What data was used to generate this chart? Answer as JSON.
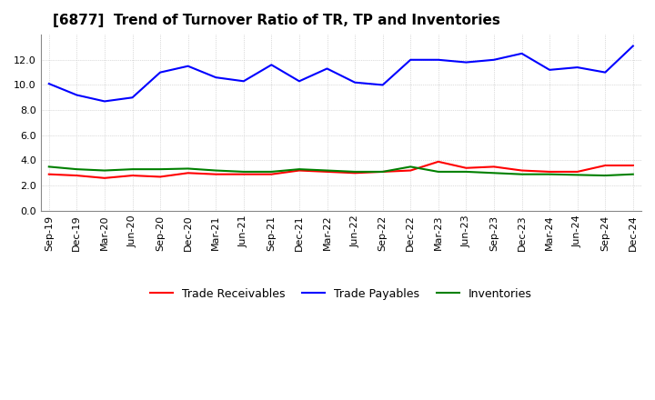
{
  "title": "[6877]  Trend of Turnover Ratio of TR, TP and Inventories",
  "x_labels": [
    "Sep-19",
    "Dec-19",
    "Mar-20",
    "Jun-20",
    "Sep-20",
    "Dec-20",
    "Mar-21",
    "Jun-21",
    "Sep-21",
    "Dec-21",
    "Mar-22",
    "Jun-22",
    "Sep-22",
    "Dec-22",
    "Mar-23",
    "Jun-23",
    "Sep-23",
    "Dec-23",
    "Mar-24",
    "Jun-24",
    "Sep-24",
    "Dec-24"
  ],
  "trade_receivables": [
    2.9,
    2.8,
    2.6,
    2.8,
    2.7,
    3.0,
    2.9,
    2.9,
    2.9,
    3.2,
    3.1,
    3.0,
    3.1,
    3.2,
    3.9,
    3.4,
    3.5,
    3.2,
    3.1,
    3.1,
    3.6,
    3.6
  ],
  "trade_payables": [
    10.1,
    9.2,
    8.7,
    9.0,
    11.0,
    11.5,
    10.6,
    10.3,
    11.6,
    10.3,
    11.3,
    10.2,
    10.0,
    12.0,
    12.0,
    11.8,
    12.0,
    12.5,
    11.2,
    11.4,
    11.0,
    13.1
  ],
  "inventories": [
    3.5,
    3.3,
    3.2,
    3.3,
    3.3,
    3.35,
    3.2,
    3.1,
    3.1,
    3.3,
    3.2,
    3.1,
    3.1,
    3.5,
    3.1,
    3.1,
    3.0,
    2.9,
    2.9,
    2.85,
    2.8,
    2.9
  ],
  "trade_receivables_color": "#ff0000",
  "trade_payables_color": "#0000ff",
  "inventories_color": "#008000",
  "ylim": [
    0,
    14
  ],
  "yticks": [
    0.0,
    2.0,
    4.0,
    6.0,
    8.0,
    10.0,
    12.0
  ],
  "background_color": "#ffffff",
  "plot_bg_color": "#ffffff",
  "grid_color": "#aaaaaa",
  "title_fontsize": 11,
  "legend_fontsize": 9,
  "axis_fontsize": 8
}
